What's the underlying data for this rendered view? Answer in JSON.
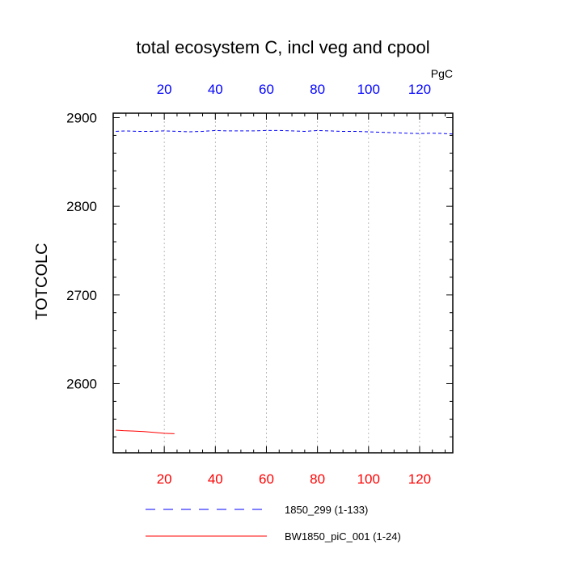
{
  "chart_data": {
    "type": "line",
    "title": "total ecosystem C, incl veg and cpool",
    "ylabel": "TOTCOLC",
    "units": "PgC",
    "xlim": [
      0,
      133
    ],
    "ylim": [
      2522,
      2905
    ],
    "xticks": [
      20,
      40,
      60,
      80,
      100,
      120
    ],
    "yticks": [
      2600,
      2700,
      2800,
      2900
    ],
    "bottom_axis_color": "#ff0000",
    "top_axis_color": "#0000ff",
    "grid": "vertical dotted",
    "series": [
      {
        "name": "1850_299 (1-133)",
        "color": "#0000ff",
        "style": "dashed",
        "x": [
          1,
          5,
          10,
          15,
          20,
          25,
          30,
          35,
          40,
          45,
          50,
          55,
          60,
          65,
          70,
          75,
          80,
          85,
          90,
          95,
          100,
          105,
          110,
          115,
          120,
          125,
          130,
          133
        ],
        "y": [
          2884.5,
          2885,
          2884.5,
          2884.5,
          2885,
          2884.5,
          2884,
          2884.5,
          2885.5,
          2885,
          2885,
          2885,
          2885.5,
          2885.5,
          2885,
          2884.5,
          2885.5,
          2885,
          2884.5,
          2884.5,
          2884,
          2883.5,
          2883,
          2882.5,
          2882,
          2882.5,
          2882,
          2881.5
        ]
      },
      {
        "name": "BW1850_piC_001 (1-24)",
        "color": "#ff0000",
        "style": "solid",
        "x": [
          1,
          4,
          8,
          12,
          16,
          20,
          24
        ],
        "y": [
          2547.5,
          2547,
          2546.5,
          2546,
          2545,
          2544,
          2543.5
        ]
      }
    ]
  }
}
